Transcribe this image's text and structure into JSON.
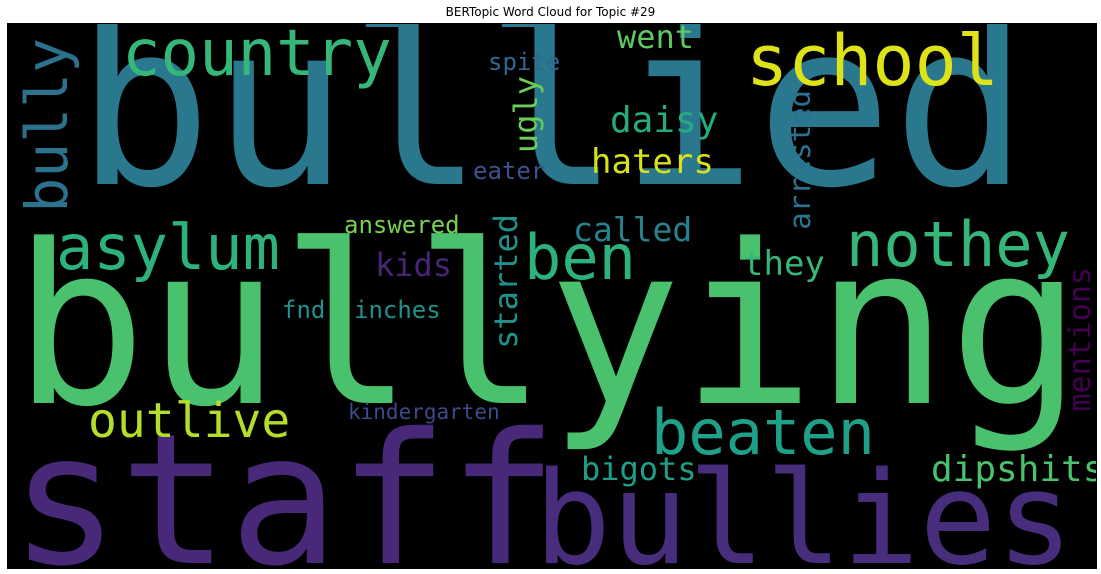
{
  "chart_data": {
    "type": "wordcloud",
    "title": "BERTopic Word Cloud for Topic #29",
    "words": [
      {
        "text": "bullied",
        "color": "#2a788e"
      },
      {
        "text": "bullying",
        "color": "#4ac16d"
      },
      {
        "text": "staff",
        "color": "#482878"
      },
      {
        "text": "bullies",
        "color": "#472d7b"
      },
      {
        "text": "school",
        "color": "#dde318"
      },
      {
        "text": "country",
        "color": "#35b779"
      },
      {
        "text": "bully",
        "color": "#2c728e"
      },
      {
        "text": "asylum",
        "color": "#2db27d"
      },
      {
        "text": "ben",
        "color": "#2db27d"
      },
      {
        "text": "nothey",
        "color": "#35b779"
      },
      {
        "text": "outlive",
        "color": "#b5de2b"
      },
      {
        "text": "beaten",
        "color": "#1fa088"
      },
      {
        "text": "went",
        "color": "#5ec962"
      },
      {
        "text": "spite",
        "color": "#31688e"
      },
      {
        "text": "ugly",
        "color": "#6ccd5a"
      },
      {
        "text": "daisy",
        "color": "#25ab82"
      },
      {
        "text": "haters",
        "color": "#d8e219"
      },
      {
        "text": "eater",
        "color": "#3b528b"
      },
      {
        "text": "arrested",
        "color": "#2c728e"
      },
      {
        "text": "called",
        "color": "#26828e"
      },
      {
        "text": "answered",
        "color": "#7ad151"
      },
      {
        "text": "kids",
        "color": "#482475"
      },
      {
        "text": "they",
        "color": "#35b779"
      },
      {
        "text": "started",
        "color": "#21918c"
      },
      {
        "text": "fnd",
        "color": "#21918c"
      },
      {
        "text": "inches",
        "color": "#21918c"
      },
      {
        "text": "mentions",
        "color": "#440154"
      },
      {
        "text": "kindergarten",
        "color": "#3e4a89"
      },
      {
        "text": "bigots",
        "color": "#1f9e89"
      },
      {
        "text": "dipshits",
        "color": "#4ac16d"
      }
    ]
  }
}
